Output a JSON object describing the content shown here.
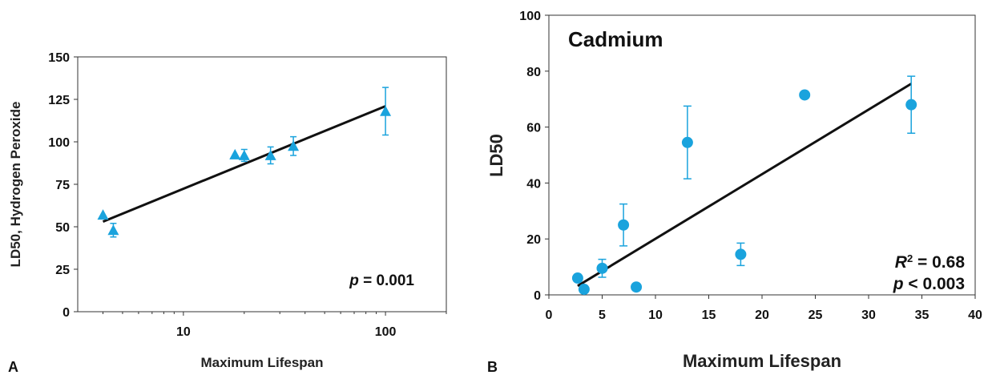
{
  "colors": {
    "marker": "#1aa3dd",
    "fit_line": "#111111",
    "axes": "#333333"
  },
  "chart_data": [
    {
      "panel": "A",
      "type": "scatter",
      "marker": "triangle",
      "xlabel": "Maximum Lifespan",
      "ylabel": "LD50, Hydrogen Peroxide",
      "xscale": "log",
      "xlim": [
        3,
        200
      ],
      "ylim": [
        0,
        150
      ],
      "xticks": [
        10,
        100
      ],
      "xtick_labels": [
        "10",
        "100"
      ],
      "yticks": [
        0,
        25,
        50,
        75,
        100,
        125,
        150
      ],
      "ytick_labels": [
        "0",
        "25",
        "50",
        "75",
        "100",
        "125",
        "150"
      ],
      "points": [
        {
          "x": 4.0,
          "y": 57,
          "err": 0
        },
        {
          "x": 4.5,
          "y": 48,
          "err": 4
        },
        {
          "x": 18,
          "y": 92.5,
          "err": 0
        },
        {
          "x": 20,
          "y": 92,
          "err": 3.5
        },
        {
          "x": 27,
          "y": 92,
          "err": 5
        },
        {
          "x": 35,
          "y": 97.5,
          "err": 5.5
        },
        {
          "x": 100,
          "y": 118,
          "err": 14
        }
      ],
      "fit_line": {
        "x": [
          4.0,
          100
        ],
        "y": [
          53,
          121
        ]
      },
      "annotations": {
        "p_label": "p",
        "p_text": " = 0.001"
      },
      "grid": false,
      "legend": "none"
    },
    {
      "panel": "B",
      "type": "scatter",
      "marker": "circle",
      "title": "Cadmium",
      "xlabel": "Maximum Lifespan",
      "ylabel": "LD50",
      "xlim": [
        0,
        40
      ],
      "ylim": [
        0,
        100
      ],
      "xticks": [
        0,
        5,
        10,
        15,
        20,
        25,
        30,
        35,
        40
      ],
      "xtick_labels": [
        "0",
        "5",
        "10",
        "15",
        "20",
        "25",
        "30",
        "35",
        "40"
      ],
      "yticks": [
        0,
        20,
        40,
        60,
        80,
        100
      ],
      "ytick_labels": [
        "0",
        "20",
        "40",
        "60",
        "80",
        "100"
      ],
      "points": [
        {
          "x": 2.7,
          "y": 6,
          "err": 0
        },
        {
          "x": 3.3,
          "y": 2,
          "err": 0
        },
        {
          "x": 5,
          "y": 9.5,
          "err": 3.2
        },
        {
          "x": 7,
          "y": 25,
          "err": 7.5
        },
        {
          "x": 8.2,
          "y": 2.8,
          "err": 0
        },
        {
          "x": 13,
          "y": 54.5,
          "err": 13
        },
        {
          "x": 18,
          "y": 14.5,
          "err": 4
        },
        {
          "x": 24,
          "y": 71.5,
          "err": 0
        },
        {
          "x": 34,
          "y": 68,
          "err": 10.2
        }
      ],
      "fit_line": {
        "x": [
          2.7,
          34
        ],
        "y": [
          3.2,
          75.5
        ]
      },
      "annotations": {
        "r2_label": "R",
        "r2_sup": "2",
        "r2_text": " = 0.68",
        "p_label": "p",
        "p_text": " < 0.003"
      },
      "grid": false,
      "legend": "none"
    }
  ]
}
